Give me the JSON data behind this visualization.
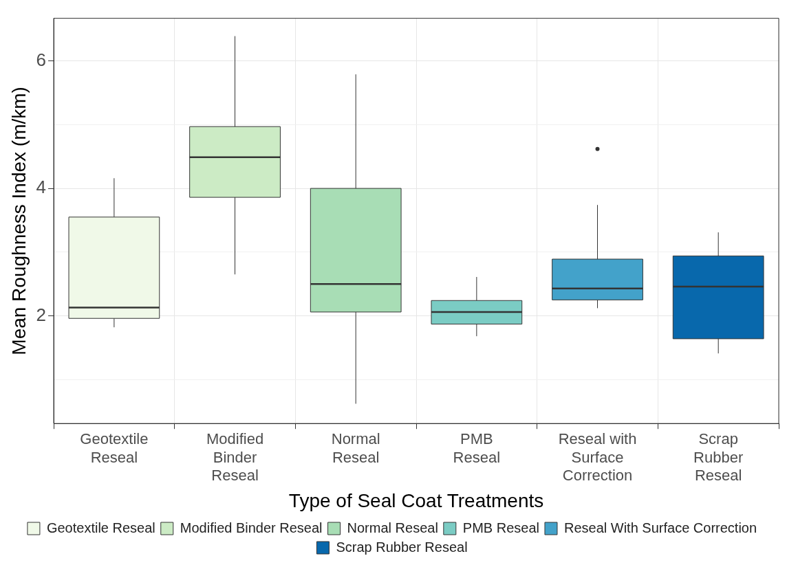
{
  "chart_data": {
    "type": "box",
    "xlabel": "Type of Seal Coat Treatments",
    "ylabel": "Mean Roughness Index (m/km)",
    "categories": [
      "Geotextile\nReseal",
      "Modified\nBinder\nReseal",
      "Normal\nReseal",
      "PMB\nReseal",
      "Reseal with\nSurface\nCorrection",
      "Scrap\nRubber\nReseal"
    ],
    "ylim": [
      0.31,
      6.67
    ],
    "yticks": [
      {
        "value": 1,
        "label": null
      },
      2,
      {
        "value": 3,
        "label": null
      },
      4,
      {
        "value": 5,
        "label": null
      },
      6
    ],
    "grid": true,
    "legend": "bottom",
    "series": [
      {
        "name": "Geotextile Reseal",
        "color": "#f0f9e8",
        "boxes": [
          {
            "low": 1.82,
            "q1": 1.96,
            "median": 2.13,
            "q3": 3.55,
            "high": 4.16
          },
          null,
          null,
          null,
          null,
          null
        ]
      },
      {
        "name": "Modified Binder Reseal",
        "color": "#ccebc5",
        "boxes": [
          null,
          {
            "low": 2.65,
            "q1": 3.86,
            "median": 4.49,
            "q3": 4.97,
            "high": 6.39
          },
          null,
          null,
          null,
          null
        ]
      },
      {
        "name": "Normal Reseal",
        "color": "#a8ddb5",
        "boxes": [
          null,
          null,
          {
            "low": 0.62,
            "q1": 2.06,
            "median": 2.5,
            "q3": 4.0,
            "high": 5.79
          },
          null,
          null,
          null
        ]
      },
      {
        "name": "PMB Reseal",
        "color": "#7bccc4",
        "boxes": [
          null,
          null,
          null,
          {
            "low": 1.68,
            "q1": 1.87,
            "median": 2.06,
            "q3": 2.24,
            "high": 2.61
          },
          null,
          null
        ]
      },
      {
        "name": "Reseal With Surface Correction",
        "color": "#43a2ca",
        "boxes": [
          null,
          null,
          null,
          null,
          {
            "low": 2.12,
            "q1": 2.25,
            "median": 2.43,
            "q3": 2.89,
            "high": 3.74,
            "outliers": [
              4.62
            ]
          },
          null
        ]
      },
      {
        "name": "Scrap Rubber Reseal",
        "color": "#0868ac",
        "boxes": [
          null,
          null,
          null,
          null,
          null,
          {
            "low": 1.41,
            "q1": 1.64,
            "median": 2.46,
            "q3": 2.94,
            "high": 3.31
          }
        ]
      }
    ]
  }
}
